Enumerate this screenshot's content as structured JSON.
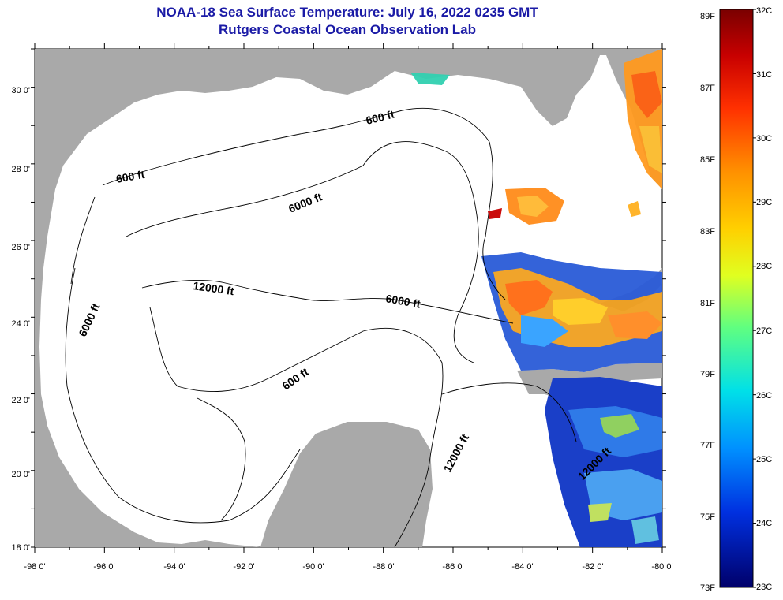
{
  "title": "NOAA-18 Sea Surface Temperature:  July 16, 2022 0235 GMT",
  "subtitle": "Rutgers Coastal Ocean Observation Lab",
  "lon_ticks": [
    "-98 0'",
    "-96 0'",
    "-94 0'",
    "-92 0'",
    "-90 0'",
    "-88 0'",
    "-86 0'",
    "-84 0'",
    "-82 0'",
    "-80 0'"
  ],
  "lat_ticks": [
    "30 0'",
    "28 0'",
    "26 0'",
    "24 0'",
    "22 0'",
    "20 0'",
    "18 0'"
  ],
  "contour_labels": [
    "600 ft",
    "600 ft",
    "6000 ft",
    "12000 ft",
    "6000 ft",
    "6000 ft",
    "600 ft",
    "12000 ft",
    "12000 ft"
  ],
  "colorbar": {
    "celsius": [
      "32C",
      "31C",
      "30C",
      "29C",
      "28C",
      "27C",
      "26C",
      "25C",
      "24C",
      "23C"
    ],
    "fahrenheit": [
      "89F",
      "87F",
      "85F",
      "83F",
      "81F",
      "79F",
      "77F",
      "75F",
      "73F"
    ]
  },
  "colors": {
    "title": "#1a1aa6",
    "land": "#a9a9a9",
    "water_no_data": "#ffffff"
  }
}
